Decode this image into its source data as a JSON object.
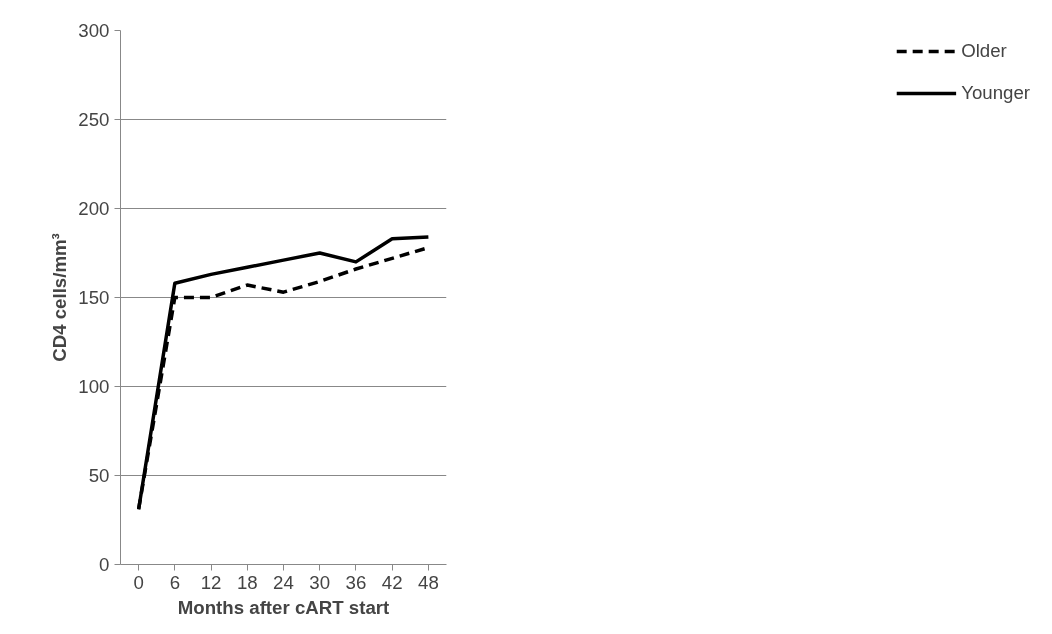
{
  "chart_data": {
    "type": "line",
    "xlabel": "Months after cART start",
    "ylabel": "CD4 cells/mm³",
    "categories": [
      "0",
      "6",
      "12",
      "18",
      "24",
      "30",
      "36",
      "42",
      "48"
    ],
    "ylim": [
      0,
      300
    ],
    "yticks": [
      0,
      50,
      100,
      150,
      200,
      250,
      300
    ],
    "grid": "y",
    "legend": "right",
    "series": [
      {
        "name": "Older",
        "color": "#000000",
        "line_style": "dashed",
        "values": [
          31,
          150,
          150,
          157,
          153,
          159,
          166,
          172,
          178
        ]
      },
      {
        "name": "Younger",
        "color": "#000000",
        "line_style": "solid",
        "values": [
          31,
          158,
          163,
          167,
          171,
          175,
          170,
          183,
          184
        ]
      }
    ]
  }
}
